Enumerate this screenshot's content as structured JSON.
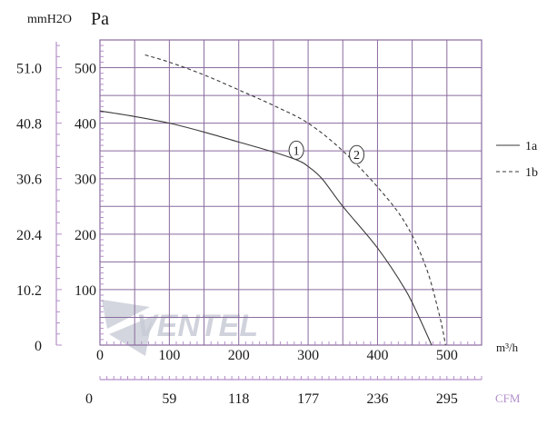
{
  "chart_data": {
    "type": "line",
    "left_unit": "mmH2O",
    "pa_unit": "Pa",
    "x_unit": "m³/h",
    "cfm_unit": "CFM",
    "x_ticks": [
      0,
      100,
      200,
      300,
      400,
      500
    ],
    "x_tick_labels": [
      "0",
      "100",
      "200",
      "300",
      "400",
      "500"
    ],
    "xlim": [
      0,
      550
    ],
    "y_ticks": [
      100,
      200,
      300,
      400,
      500
    ],
    "y_tick_labels": [
      "100",
      "200",
      "300",
      "400",
      "500"
    ],
    "ylim": [
      0,
      550
    ],
    "mmh2o_labels": [
      {
        "value": 0,
        "label": "0"
      },
      {
        "value": 100,
        "label": "10.2"
      },
      {
        "value": 200,
        "label": "20.4"
      },
      {
        "value": 300,
        "label": "30.6"
      },
      {
        "value": 400,
        "label": "40.8"
      },
      {
        "value": 500,
        "label": "51.0"
      }
    ],
    "cfm_labels": [
      {
        "value": 0,
        "label": "0"
      },
      {
        "value": 100,
        "label": "59"
      },
      {
        "value": 200,
        "label": "118"
      },
      {
        "value": 300,
        "label": "177"
      },
      {
        "value": 400,
        "label": "236"
      },
      {
        "value": 500,
        "label": "295"
      }
    ],
    "grid": true,
    "legend_position": "right",
    "series": [
      {
        "name": "1a",
        "style": "solid",
        "points": [
          [
            0,
            422
          ],
          [
            50,
            412
          ],
          [
            100,
            400
          ],
          [
            150,
            384
          ],
          [
            200,
            366
          ],
          [
            250,
            348
          ],
          [
            285,
            333
          ],
          [
            300,
            322
          ],
          [
            320,
            300
          ],
          [
            350,
            250
          ],
          [
            400,
            175
          ],
          [
            440,
            100
          ],
          [
            460,
            50
          ],
          [
            478,
            0
          ]
        ]
      },
      {
        "name": "1b",
        "style": "dashed",
        "points": [
          [
            65,
            523
          ],
          [
            100,
            510
          ],
          [
            150,
            487
          ],
          [
            200,
            460
          ],
          [
            250,
            432
          ],
          [
            300,
            400
          ],
          [
            350,
            350
          ],
          [
            400,
            285
          ],
          [
            440,
            220
          ],
          [
            470,
            140
          ],
          [
            490,
            50
          ],
          [
            498,
            0
          ]
        ]
      }
    ],
    "markers": [
      {
        "label": "1",
        "x": 283,
        "y": 335
      },
      {
        "label": "2",
        "x": 370,
        "y": 327
      }
    ],
    "watermark": "VENTEL"
  },
  "colors": {
    "grid": "#8a6a9e",
    "curve": "#3a3a3a",
    "minor_tick": "#b48fc9",
    "watermark": "#c8ccd6"
  }
}
